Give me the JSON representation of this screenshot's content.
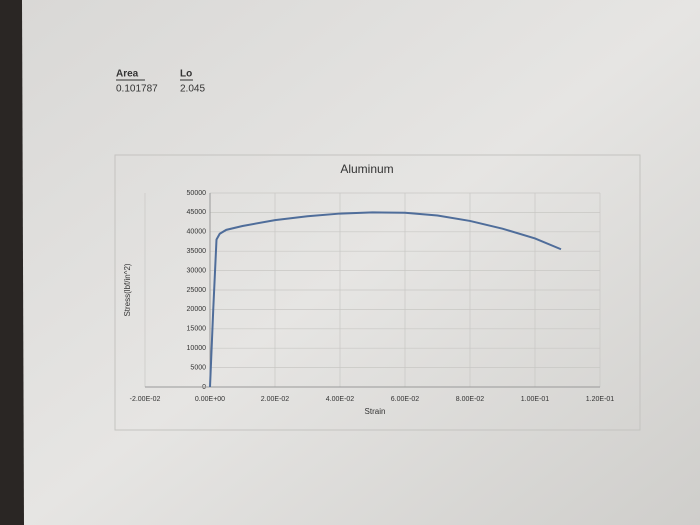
{
  "header": {
    "area_label": "Area",
    "area_value": 0.101787,
    "lo_label": "Lo",
    "lo_value": 2.045
  },
  "chart_data": {
    "type": "line",
    "title": "Aluminum",
    "x_label": "Strain",
    "y_label": "Stress(lbf/in^2)",
    "x": [
      0,
      0.001,
      0.002,
      0.003,
      0.005,
      0.01,
      0.02,
      0.03,
      0.04,
      0.05,
      0.06,
      0.07,
      0.08,
      0.09,
      0.1,
      0.108
    ],
    "series": [
      {
        "color": "#4f6d9a",
        "values": [
          0,
          20000,
          38000,
          39500,
          40500,
          41500,
          43000,
          44000,
          44700,
          45000,
          44900,
          44200,
          42800,
          40800,
          38300,
          35500
        ]
      }
    ],
    "xlim": [
      -0.02,
      0.12
    ],
    "xticks": [
      {
        "value": -0.02,
        "label": "-2.00E-02"
      },
      {
        "value": 0,
        "label": "0.00E+00"
      },
      {
        "value": 0.02,
        "label": "2.00E-02"
      },
      {
        "value": 0.04,
        "label": "4.00E-02"
      },
      {
        "value": 0.06,
        "label": "6.00E-02"
      },
      {
        "value": 0.08,
        "label": "8.00E-02"
      },
      {
        "value": 0.1,
        "label": "1.00E-01"
      },
      {
        "value": 0.12,
        "label": "1.20E-01"
      }
    ],
    "ylim": [
      0,
      50000
    ],
    "yticks": [
      0,
      5000,
      10000,
      15000,
      20000,
      25000,
      30000,
      35000,
      40000,
      45000,
      50000
    ],
    "grid": true
  }
}
